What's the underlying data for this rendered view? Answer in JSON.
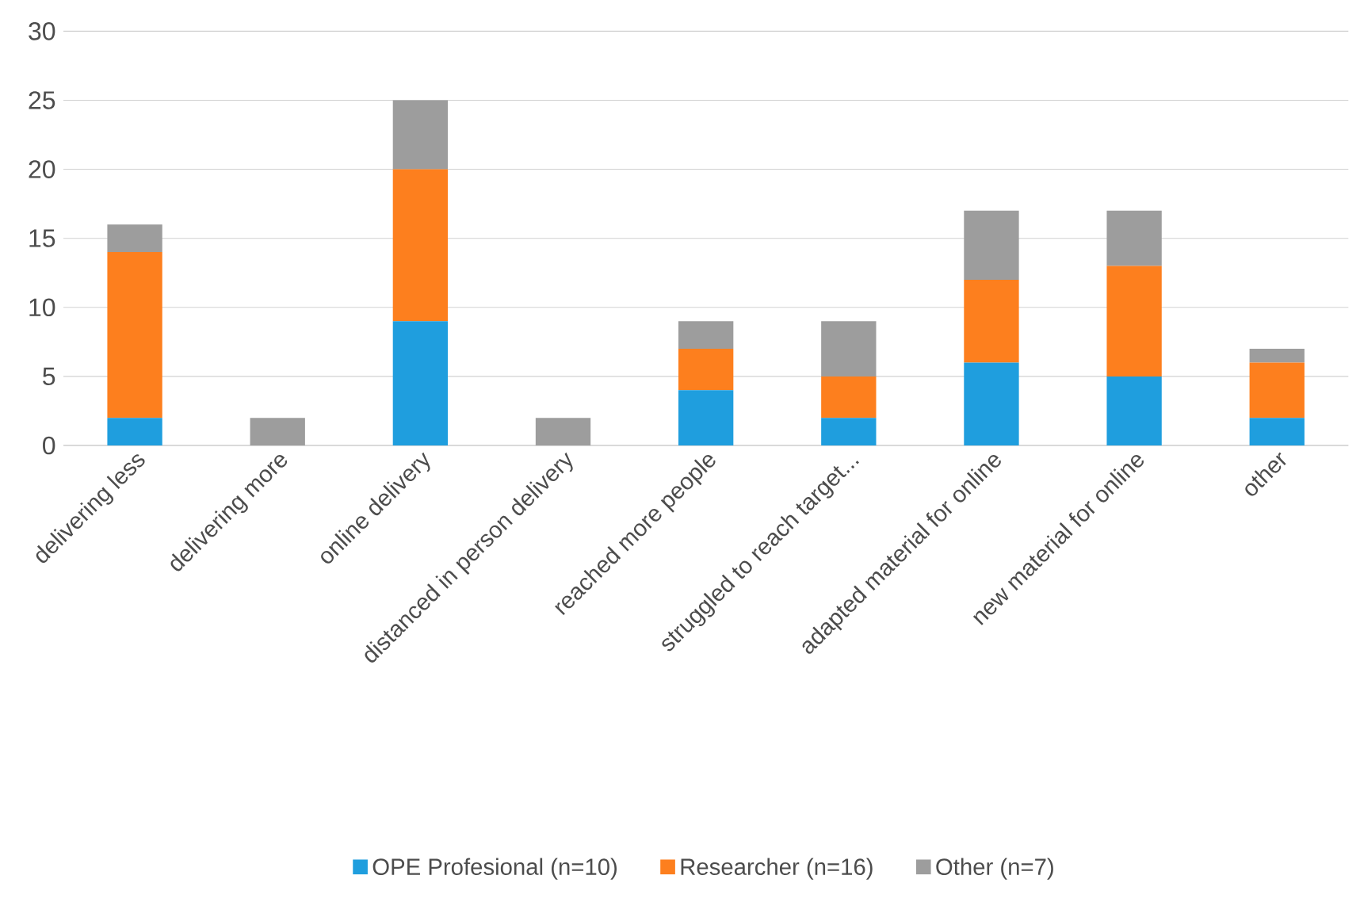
{
  "chart_data": {
    "type": "bar",
    "stacked": true,
    "categories": [
      "delivering less",
      "delivering more",
      "online delivery",
      "distanced in person delivery",
      "reached more people",
      "struggled to reach target...",
      "adapted material for online",
      "new material for online",
      "other"
    ],
    "series": [
      {
        "name": "OPE Profesional (n=10)",
        "color": "#1f9ede",
        "values": [
          2,
          0,
          9,
          0,
          4,
          2,
          6,
          5,
          2
        ]
      },
      {
        "name": "Researcher (n=16)",
        "color": "#fd7f1e",
        "values": [
          12,
          0,
          11,
          0,
          3,
          3,
          6,
          8,
          4
        ]
      },
      {
        "name": "Other (n=7)",
        "color": "#9d9d9d",
        "values": [
          2,
          2,
          5,
          2,
          2,
          4,
          5,
          4,
          1
        ]
      }
    ],
    "ylim": [
      0,
      30
    ],
    "yticks": [
      0,
      5,
      10,
      15,
      20,
      25,
      30
    ],
    "grid": "y",
    "legend": "bottom"
  }
}
